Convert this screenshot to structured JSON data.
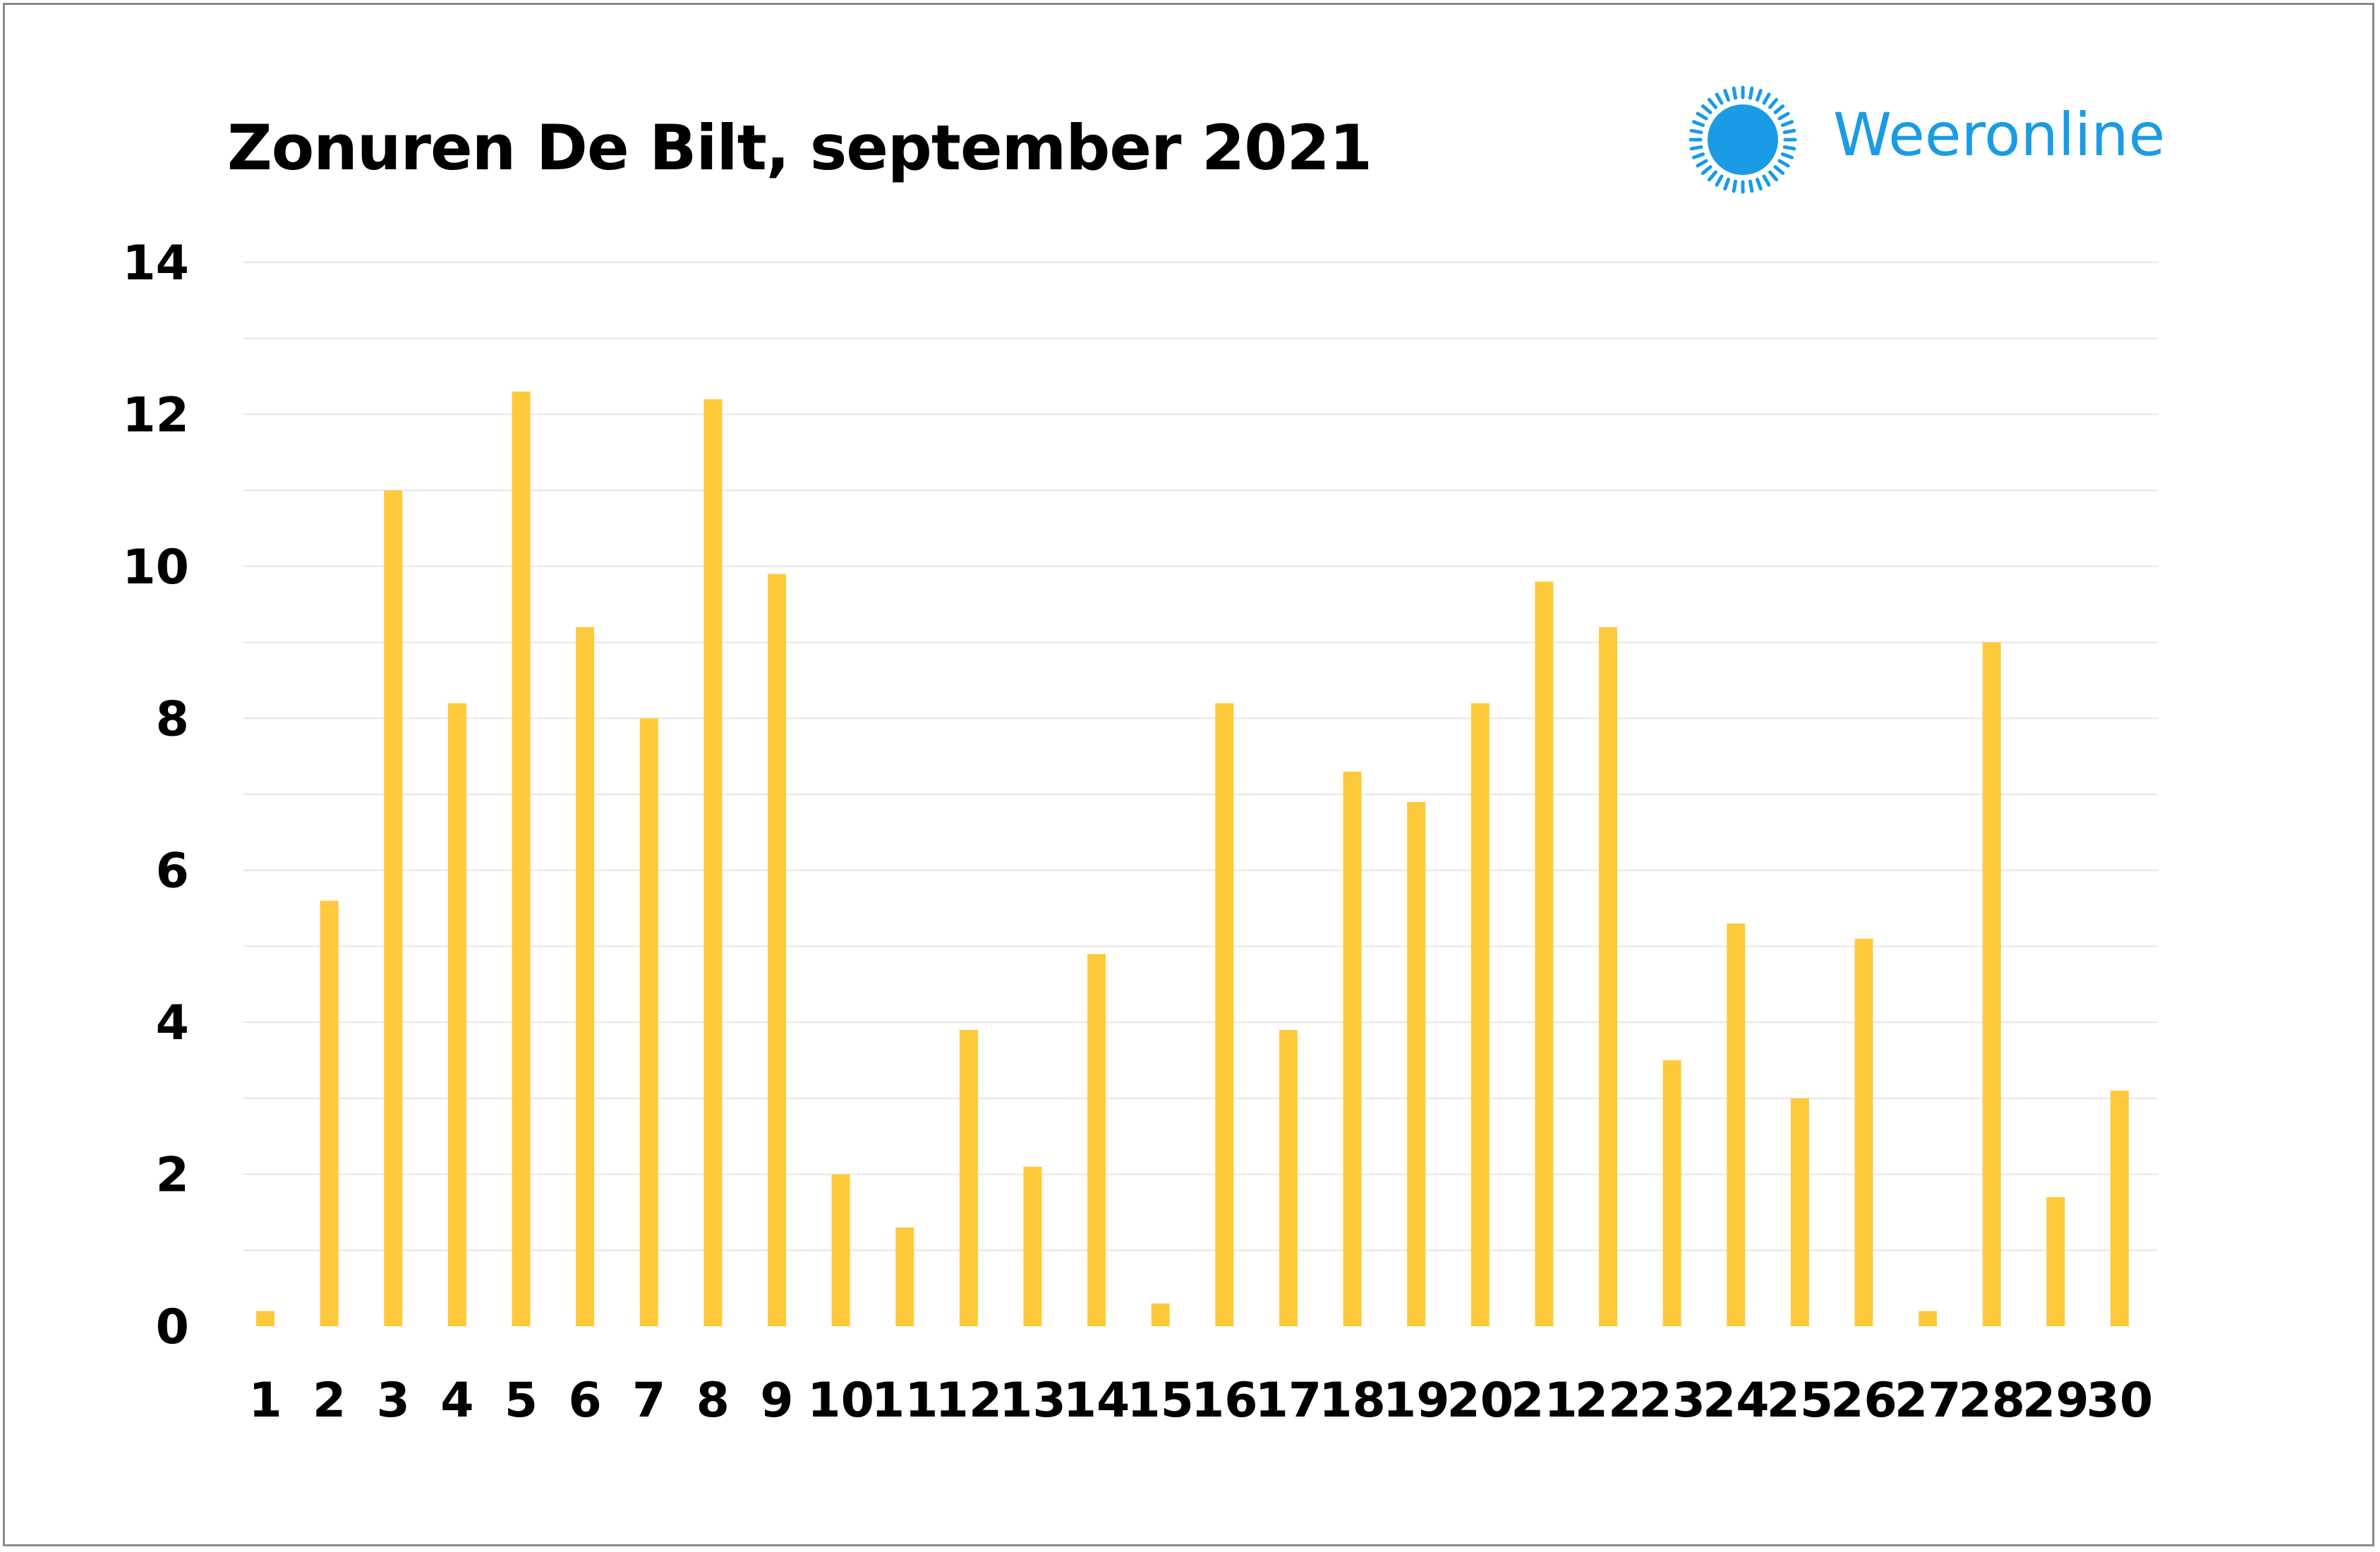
{
  "chart_data": {
    "type": "bar",
    "title": "Zonuren De Bilt, september 2021",
    "xlabel": "",
    "ylabel": "",
    "ylim": [
      0,
      14
    ],
    "yticks": [
      "0",
      "2",
      "4",
      "6",
      "8",
      "10",
      "12",
      "14"
    ],
    "grid": "horizontal",
    "legend": "none",
    "bar_color": "#ffc93c",
    "categories": [
      "1",
      "2",
      "3",
      "4",
      "5",
      "6",
      "7",
      "8",
      "9",
      "10",
      "11",
      "12",
      "13",
      "14",
      "15",
      "16",
      "17",
      "18",
      "19",
      "20",
      "21",
      "22",
      "23",
      "24",
      "25",
      "26",
      "27",
      "28",
      "29",
      "30"
    ],
    "values": [
      0.2,
      5.6,
      11.0,
      8.2,
      12.3,
      9.2,
      8.0,
      12.2,
      9.9,
      2.0,
      1.3,
      3.9,
      2.1,
      4.9,
      0.3,
      8.2,
      3.9,
      7.3,
      6.9,
      8.2,
      9.8,
      9.2,
      3.5,
      5.3,
      3.0,
      5.1,
      0.2,
      9.0,
      1.7,
      3.1
    ]
  },
  "brand": {
    "name": "Weeronline",
    "icon": "sun-icon",
    "color": "#1a9be6"
  }
}
